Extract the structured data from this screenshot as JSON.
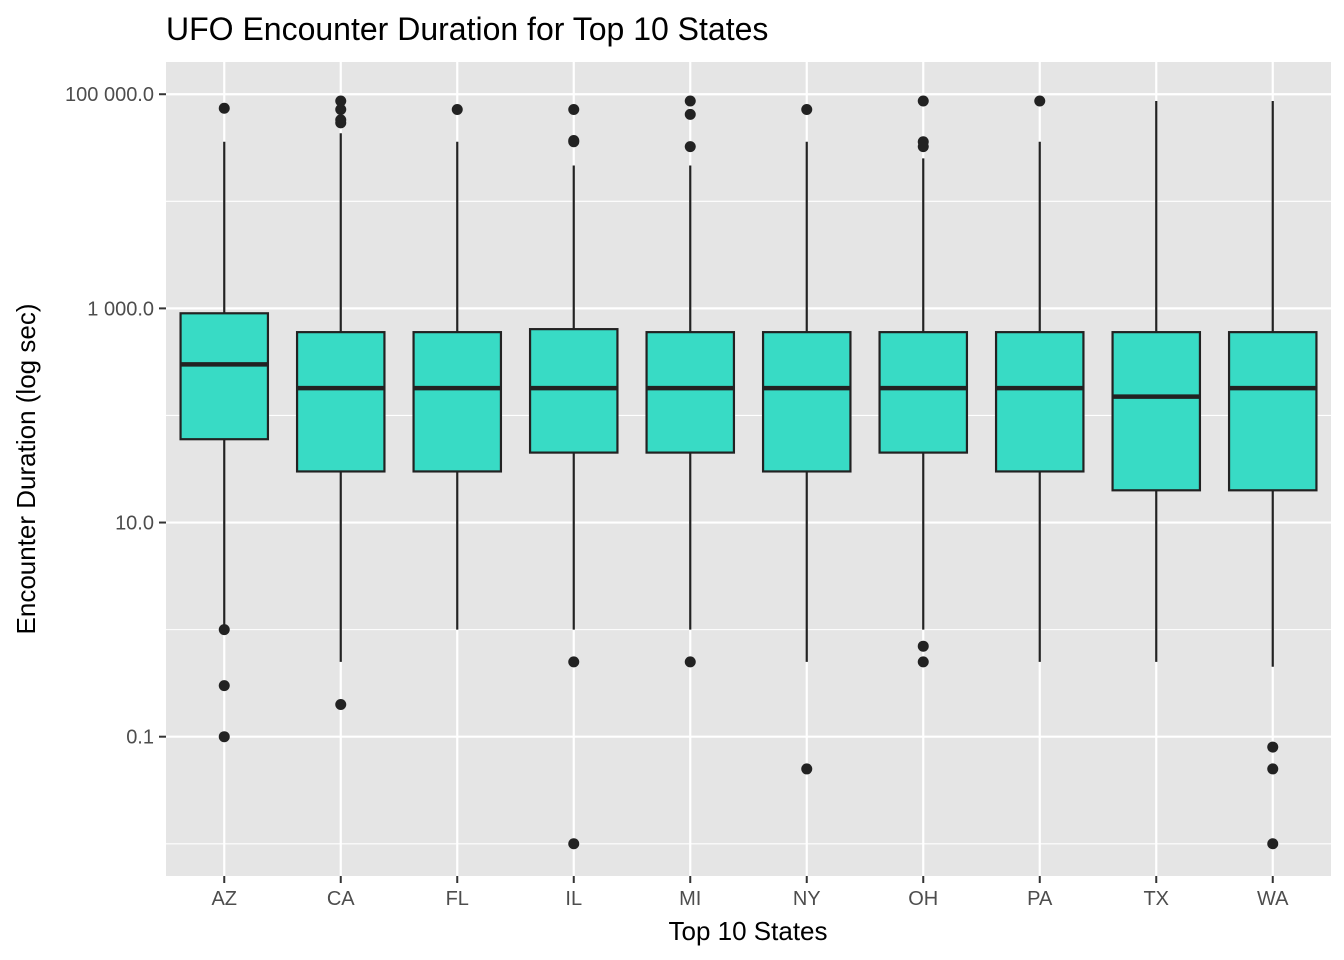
{
  "chart_data": {
    "type": "boxplot",
    "title": "UFO Encounter Duration for Top 10 States",
    "xlabel": "Top 10 States",
    "ylabel": "Encounter Duration (log sec)",
    "y_scale": "log10",
    "ylim": [
      0.005,
      200000
    ],
    "y_ticks": [
      0.1,
      10,
      1000,
      100000
    ],
    "y_tick_labels": [
      "0.1",
      "10.0",
      "1 000.0",
      "100 000.0"
    ],
    "grid": true,
    "colors": {
      "panel": "#e5e5e5",
      "grid": "#ffffff",
      "box_fill": "#38dbc5",
      "stroke": "#222222"
    },
    "categories": [
      "AZ",
      "CA",
      "FL",
      "IL",
      "MI",
      "NY",
      "OH",
      "PA",
      "TX",
      "WA"
    ],
    "boxes": [
      {
        "whisker_low": 1,
        "q1": 60,
        "median": 300,
        "q3": 900,
        "whisker_high": 36000,
        "outliers": [
          74000,
          1,
          0.3,
          0.1
        ]
      },
      {
        "whisker_low": 0.5,
        "q1": 30,
        "median": 180,
        "q3": 600,
        "whisker_high": 43200,
        "outliers": [
          86400,
          72000,
          57600,
          54000,
          0.2
        ]
      },
      {
        "whisker_low": 1,
        "q1": 30,
        "median": 180,
        "q3": 600,
        "whisker_high": 36000,
        "outliers": [
          72000
        ]
      },
      {
        "whisker_low": 1,
        "q1": 45,
        "median": 180,
        "q3": 640,
        "whisker_high": 21600,
        "outliers": [
          72000,
          37000,
          36000,
          0.5,
          0.01
        ]
      },
      {
        "whisker_low": 1,
        "q1": 45,
        "median": 180,
        "q3": 600,
        "whisker_high": 21600,
        "outliers": [
          86400,
          64800,
          32400,
          0.5
        ]
      },
      {
        "whisker_low": 0.5,
        "q1": 30,
        "median": 180,
        "q3": 600,
        "whisker_high": 36000,
        "outliers": [
          72000,
          0.05
        ]
      },
      {
        "whisker_low": 1,
        "q1": 45,
        "median": 180,
        "q3": 600,
        "whisker_high": 25200,
        "outliers": [
          86400,
          36000,
          32400,
          0.7,
          0.5
        ]
      },
      {
        "whisker_low": 0.5,
        "q1": 30,
        "median": 180,
        "q3": 600,
        "whisker_high": 36000,
        "outliers": [
          86400
        ]
      },
      {
        "whisker_low": 0.5,
        "q1": 20,
        "median": 150,
        "q3": 600,
        "whisker_high": 86400,
        "outliers": []
      },
      {
        "whisker_low": 0.45,
        "q1": 20,
        "median": 180,
        "q3": 600,
        "whisker_high": 86400,
        "outliers": [
          0.08,
          0.05,
          0.01
        ]
      }
    ]
  }
}
